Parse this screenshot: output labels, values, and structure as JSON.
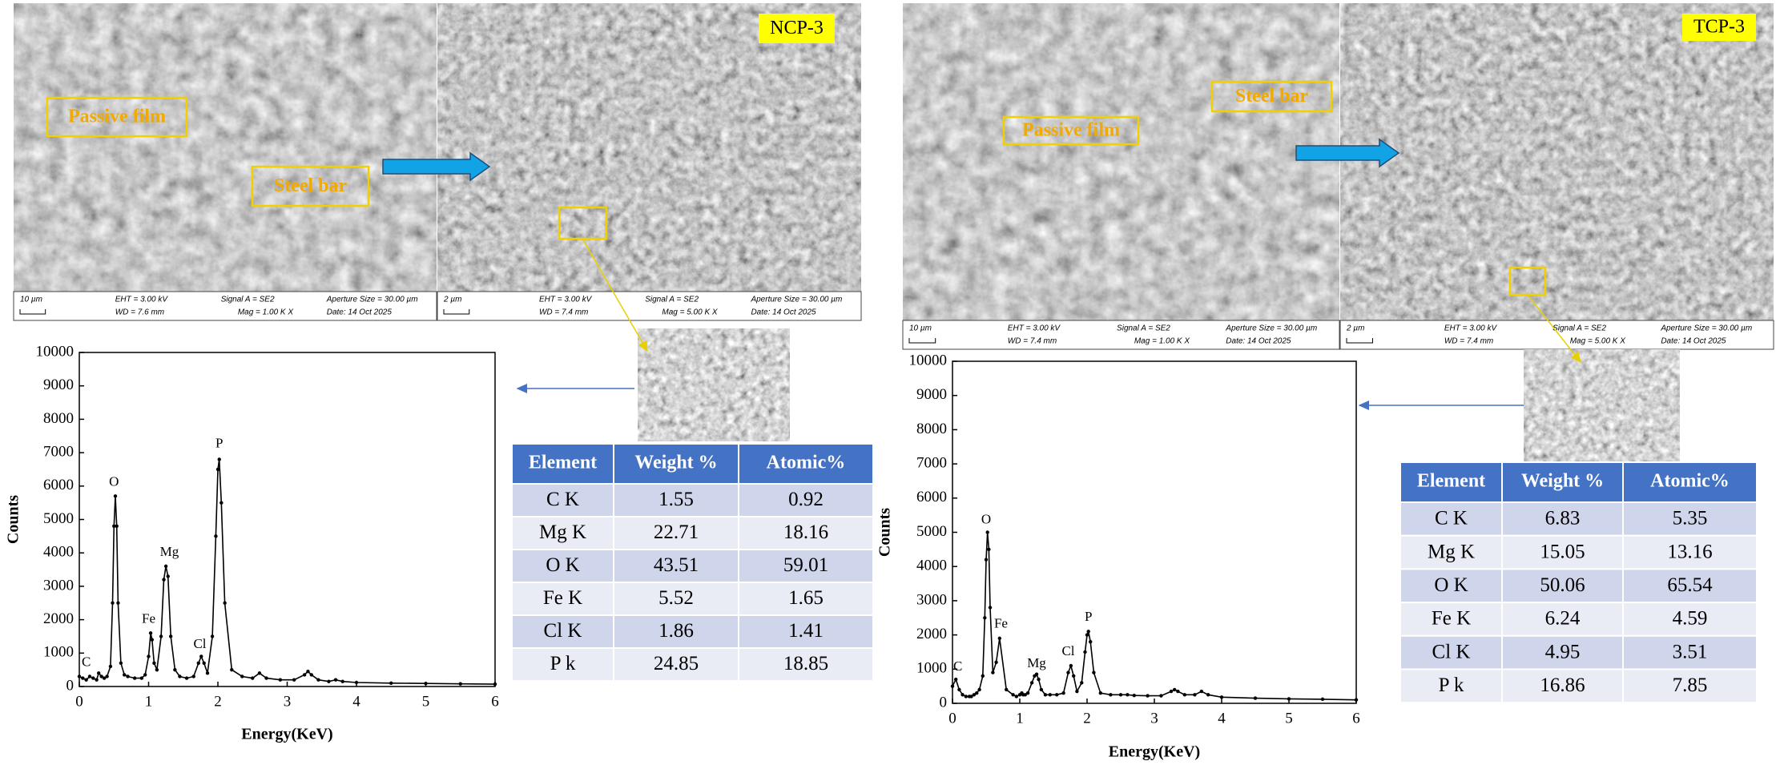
{
  "chart_data": [
    {
      "type": "line",
      "xlabel": "Energy(KeV)",
      "ylabel": "Counts",
      "xlim": [
        0,
        6
      ],
      "xticks": [
        0,
        1,
        2,
        3,
        4,
        5,
        6
      ],
      "ylim": [
        0,
        10000
      ],
      "yticks": [
        0,
        1000,
        2000,
        3000,
        4000,
        5000,
        6000,
        7000,
        8000,
        9000,
        10000
      ],
      "annotations": [
        "C",
        "O",
        "Fe",
        "Mg",
        "Cl",
        "P"
      ],
      "x": [
        0,
        0.05,
        0.1,
        0.15,
        0.2,
        0.25,
        0.28,
        0.32,
        0.36,
        0.4,
        0.45,
        0.48,
        0.5,
        0.52,
        0.54,
        0.56,
        0.6,
        0.65,
        0.7,
        0.8,
        0.9,
        0.95,
        1.0,
        1.03,
        1.05,
        1.08,
        1.12,
        1.18,
        1.22,
        1.25,
        1.28,
        1.32,
        1.38,
        1.45,
        1.55,
        1.65,
        1.72,
        1.76,
        1.8,
        1.85,
        1.92,
        1.97,
        2.0,
        2.02,
        2.05,
        2.1,
        2.2,
        2.35,
        2.5,
        2.6,
        2.7,
        2.9,
        3.1,
        3.25,
        3.3,
        3.35,
        3.45,
        3.6,
        3.7,
        3.8,
        4.0,
        4.5,
        5.0,
        5.5,
        6.0
      ],
      "series": [
        {
          "color": "#000000",
          "values": [
            300,
            250,
            200,
            300,
            250,
            200,
            400,
            300,
            250,
            300,
            600,
            2500,
            4800,
            5700,
            4800,
            2500,
            700,
            350,
            300,
            250,
            250,
            350,
            900,
            1600,
            1400,
            700,
            500,
            1500,
            3200,
            3600,
            3300,
            1500,
            500,
            300,
            250,
            300,
            700,
            900,
            700,
            400,
            1500,
            4500,
            6500,
            6800,
            5500,
            2500,
            500,
            300,
            250,
            400,
            250,
            200,
            200,
            350,
            450,
            350,
            200,
            150,
            200,
            150,
            120,
            100,
            90,
            80,
            70
          ]
        }
      ]
    },
    {
      "type": "line",
      "xlabel": "Energy(KeV)",
      "ylabel": "Counts",
      "xlim": [
        0,
        6
      ],
      "xticks": [
        0,
        1,
        2,
        3,
        4,
        5,
        6
      ],
      "ylim": [
        0,
        10000
      ],
      "yticks": [
        0,
        1000,
        2000,
        3000,
        4000,
        5000,
        6000,
        7000,
        8000,
        9000,
        10000
      ],
      "annotations": [
        "C",
        "O",
        "Fe",
        "Mg",
        "Cl",
        "P"
      ],
      "x": [
        0,
        0.05,
        0.1,
        0.15,
        0.2,
        0.25,
        0.28,
        0.32,
        0.36,
        0.4,
        0.45,
        0.48,
        0.5,
        0.52,
        0.54,
        0.56,
        0.6,
        0.65,
        0.7,
        0.8,
        0.9,
        0.95,
        1.0,
        1.03,
        1.05,
        1.08,
        1.12,
        1.18,
        1.22,
        1.25,
        1.28,
        1.32,
        1.38,
        1.45,
        1.55,
        1.65,
        1.72,
        1.76,
        1.8,
        1.85,
        1.92,
        1.97,
        2.0,
        2.02,
        2.05,
        2.1,
        2.2,
        2.35,
        2.5,
        2.6,
        2.7,
        2.9,
        3.1,
        3.25,
        3.3,
        3.35,
        3.45,
        3.6,
        3.7,
        3.8,
        4.0,
        4.5,
        5.0,
        5.5,
        6.0
      ],
      "series": [
        {
          "color": "#000000",
          "values": [
            500,
            700,
            400,
            250,
            200,
            200,
            200,
            250,
            300,
            400,
            800,
            2500,
            4200,
            5000,
            4500,
            2800,
            900,
            1200,
            1900,
            400,
            250,
            200,
            250,
            300,
            250,
            250,
            300,
            600,
            800,
            850,
            700,
            400,
            250,
            250,
            250,
            300,
            900,
            1100,
            800,
            350,
            600,
            1500,
            2000,
            2100,
            1800,
            900,
            300,
            250,
            250,
            250,
            230,
            220,
            220,
            350,
            400,
            350,
            250,
            250,
            350,
            250,
            180,
            150,
            130,
            120,
            100
          ]
        }
      ]
    }
  ],
  "panels": [
    {
      "label": "NCP-3",
      "film_label": "Passive film",
      "steel_label": "Steel bar",
      "images": [
        {
          "info": [
            "10 µm",
            "EHT = 3.00 kV",
            "WD = 7.6 mm",
            "Signal A = SE2",
            "Mag = 1.00 K X",
            "Aperture Size = 30.00 µm",
            "Date: 14 Oct 2025"
          ]
        },
        {
          "info": [
            "2 µm",
            "EHT = 3.00 kV",
            "WD = 7.4 mm",
            "Signal A = SE2",
            "Mag = 5.00 K X",
            "Aperture Size = 30.00 µm",
            "Date: 14 Oct 2025"
          ]
        }
      ],
      "table": {
        "header": [
          "Element",
          "Weight %",
          "Atomic%"
        ],
        "rows": [
          [
            "C K",
            "1.55",
            "0.92"
          ],
          [
            "Mg K",
            "22.71",
            "18.16"
          ],
          [
            "O K",
            "43.51",
            "59.01"
          ],
          [
            "Fe K",
            "5.52",
            "1.65"
          ],
          [
            "Cl K",
            "1.86",
            "1.41"
          ],
          [
            "P k",
            "24.85",
            "18.85"
          ]
        ]
      }
    },
    {
      "label": "TCP-3",
      "film_label": "Passive film",
      "steel_label": "Steel bar",
      "images": [
        {
          "info": [
            "10 µm",
            "EHT = 3.00 kV",
            "WD = 7.4 mm",
            "Signal A = SE2",
            "Mag = 1.00 K X",
            "Aperture Size = 30.00 µm",
            "Date: 14 Oct 2025"
          ]
        },
        {
          "info": [
            "2 µm",
            "EHT = 3.00 kV",
            "WD = 7.4 mm",
            "Signal A = SE2",
            "Mag = 5.00 K X",
            "Aperture Size = 30.00 µm",
            "Date: 14 Oct 2025"
          ]
        }
      ],
      "table": {
        "header": [
          "Element",
          "Weight %",
          "Atomic%"
        ],
        "rows": [
          [
            "C K",
            "6.83",
            "5.35"
          ],
          [
            "Mg K",
            "15.05",
            "13.16"
          ],
          [
            "O K",
            "50.06",
            "65.54"
          ],
          [
            "Fe K",
            "6.24",
            "4.59"
          ],
          [
            "Cl K",
            "4.95",
            "3.51"
          ],
          [
            "P k",
            "16.86",
            "7.85"
          ]
        ]
      }
    }
  ]
}
